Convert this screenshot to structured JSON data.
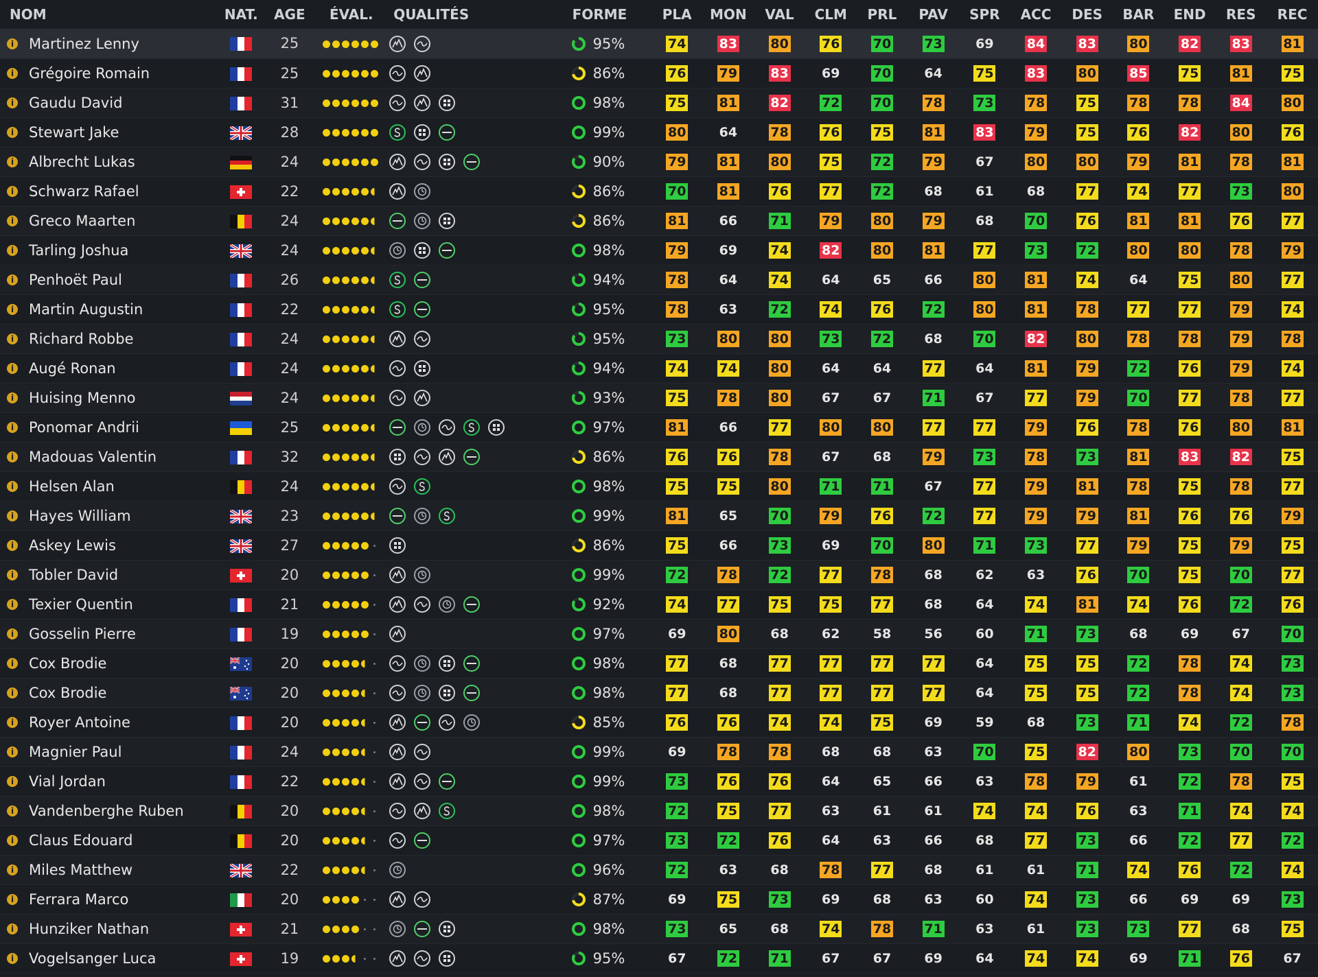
{
  "headers": {
    "nom": "NOM",
    "nat": "NAT.",
    "age": "AGE",
    "eval": "ÉVAL.",
    "qualites": "QUALITÉS",
    "forme": "FORME",
    "stats": [
      "PLA",
      "MON",
      "VAL",
      "CLM",
      "PRL",
      "PAV",
      "SPR",
      "ACC",
      "DES",
      "BAR",
      "END",
      "RES",
      "REC"
    ]
  },
  "colors": {
    "red": "#e8334a",
    "orange": "#f5a623",
    "yellow": "#f4dc1c",
    "green": "#2ecc40",
    "forme_green": "#2ecc40",
    "forme_yellow": "#f4dc1c",
    "stars": "#f2cf10"
  },
  "players": [
    {
      "name": "Martinez Lenny",
      "nat": "fr",
      "age": "25",
      "stars": 6,
      "quals": [
        "climber",
        "hill"
      ],
      "forme": "95%",
      "stats": [
        74,
        83,
        80,
        76,
        70,
        73,
        69,
        84,
        83,
        80,
        82,
        83,
        81
      ],
      "selected": true
    },
    {
      "name": "Grégoire Romain",
      "nat": "fr",
      "age": "25",
      "stars": 6,
      "quals": [
        "hill",
        "climber"
      ],
      "forme": "86%",
      "stats": [
        76,
        79,
        83,
        69,
        70,
        64,
        75,
        83,
        80,
        85,
        75,
        81,
        75
      ]
    },
    {
      "name": "Gaudu David",
      "nat": "fr",
      "age": "31",
      "stars": 6,
      "quals": [
        "hill",
        "climber",
        "cobbles"
      ],
      "forme": "98%",
      "stats": [
        75,
        81,
        82,
        72,
        70,
        78,
        73,
        78,
        75,
        78,
        78,
        84,
        80
      ]
    },
    {
      "name": "Stewart Jake",
      "nat": "gb",
      "age": "28",
      "stars": 6,
      "quals": [
        "sprinter",
        "cobbles",
        "flat"
      ],
      "forme": "99%",
      "stats": [
        80,
        64,
        78,
        76,
        75,
        81,
        83,
        79,
        75,
        76,
        82,
        80,
        76
      ]
    },
    {
      "name": "Albrecht Lukas",
      "nat": "de",
      "age": "24",
      "stars": 6,
      "quals": [
        "climber",
        "hill",
        "cobbles",
        "flat"
      ],
      "forme": "90%",
      "stats": [
        79,
        81,
        80,
        75,
        72,
        79,
        67,
        80,
        80,
        79,
        81,
        78,
        81
      ]
    },
    {
      "name": "Schwarz Rafael",
      "nat": "ch",
      "age": "22",
      "stars": 5.5,
      "quals": [
        "climber",
        "itt"
      ],
      "forme": "86%",
      "stats": [
        70,
        81,
        76,
        77,
        72,
        68,
        61,
        68,
        77,
        74,
        77,
        73,
        80
      ]
    },
    {
      "name": "Greco Maarten",
      "nat": "be",
      "age": "24",
      "stars": 5.5,
      "quals": [
        "flat",
        "itt",
        "cobbles"
      ],
      "forme": "86%",
      "stats": [
        81,
        66,
        71,
        79,
        80,
        79,
        68,
        70,
        76,
        81,
        81,
        76,
        77
      ]
    },
    {
      "name": "Tarling Joshua",
      "nat": "gb",
      "age": "24",
      "stars": 5.5,
      "quals": [
        "itt",
        "cobbles",
        "flat"
      ],
      "forme": "98%",
      "stats": [
        79,
        69,
        74,
        82,
        80,
        81,
        77,
        73,
        72,
        80,
        80,
        78,
        79
      ]
    },
    {
      "name": "Penhoët Paul",
      "nat": "fr",
      "age": "26",
      "stars": 5.5,
      "quals": [
        "sprinter",
        "flat"
      ],
      "forme": "94%",
      "stats": [
        78,
        64,
        74,
        64,
        65,
        66,
        80,
        81,
        74,
        64,
        75,
        80,
        77
      ]
    },
    {
      "name": "Martin Augustin",
      "nat": "fr",
      "age": "22",
      "stars": 5.5,
      "quals": [
        "sprinter",
        "flat"
      ],
      "forme": "95%",
      "stats": [
        78,
        63,
        72,
        74,
        76,
        72,
        80,
        81,
        78,
        77,
        77,
        79,
        74
      ]
    },
    {
      "name": "Richard Robbe",
      "nat": "fr",
      "age": "24",
      "stars": 5.5,
      "quals": [
        "climber",
        "hill"
      ],
      "forme": "95%",
      "stats": [
        73,
        80,
        80,
        73,
        72,
        68,
        70,
        82,
        80,
        78,
        78,
        79,
        78
      ]
    },
    {
      "name": "Augé Ronan",
      "nat": "fr",
      "age": "24",
      "stars": 5.5,
      "quals": [
        "hill",
        "cobbles"
      ],
      "forme": "94%",
      "stats": [
        74,
        74,
        80,
        64,
        64,
        77,
        64,
        81,
        79,
        72,
        76,
        79,
        74
      ]
    },
    {
      "name": "Huising Menno",
      "nat": "nl",
      "age": "24",
      "stars": 5.5,
      "quals": [
        "hill",
        "climber"
      ],
      "forme": "93%",
      "stats": [
        75,
        78,
        80,
        67,
        67,
        71,
        67,
        77,
        79,
        70,
        77,
        78,
        77
      ]
    },
    {
      "name": "Ponomar Andrii",
      "nat": "ua",
      "age": "25",
      "stars": 5.5,
      "quals": [
        "flat",
        "itt",
        "hill",
        "sprinter",
        "cobbles"
      ],
      "forme": "97%",
      "stats": [
        81,
        66,
        77,
        80,
        80,
        77,
        77,
        79,
        76,
        78,
        76,
        80,
        81
      ]
    },
    {
      "name": "Madouas Valentin",
      "nat": "fr",
      "age": "32",
      "stars": 5.5,
      "quals": [
        "cobbles",
        "hill",
        "climber",
        "flat"
      ],
      "forme": "86%",
      "stats": [
        76,
        76,
        78,
        67,
        68,
        79,
        73,
        78,
        73,
        81,
        83,
        82,
        75
      ]
    },
    {
      "name": "Helsen Alan",
      "nat": "be",
      "age": "24",
      "stars": 5.5,
      "quals": [
        "hill",
        "sprinter"
      ],
      "forme": "98%",
      "stats": [
        75,
        75,
        80,
        71,
        71,
        67,
        77,
        79,
        81,
        78,
        75,
        78,
        77
      ]
    },
    {
      "name": "Hayes William",
      "nat": "gb",
      "age": "23",
      "stars": 5.5,
      "quals": [
        "flat",
        "itt",
        "sprinter"
      ],
      "forme": "99%",
      "stats": [
        81,
        65,
        70,
        79,
        76,
        72,
        77,
        79,
        79,
        81,
        76,
        76,
        79
      ]
    },
    {
      "name": "Askey Lewis",
      "nat": "gb",
      "age": "27",
      "stars": 5,
      "quals": [
        "cobbles"
      ],
      "forme": "86%",
      "stats": [
        75,
        66,
        73,
        69,
        70,
        80,
        71,
        73,
        77,
        79,
        75,
        79,
        75
      ]
    },
    {
      "name": "Tobler David",
      "nat": "ch",
      "age": "20",
      "stars": 5,
      "quals": [
        "climber",
        "itt"
      ],
      "forme": "99%",
      "stats": [
        72,
        78,
        72,
        77,
        78,
        68,
        62,
        63,
        76,
        70,
        75,
        70,
        77
      ]
    },
    {
      "name": "Texier Quentin",
      "nat": "fr",
      "age": "21",
      "stars": 5,
      "quals": [
        "climber",
        "hill",
        "itt",
        "flat"
      ],
      "forme": "92%",
      "stats": [
        74,
        77,
        75,
        75,
        77,
        68,
        64,
        74,
        81,
        74,
        76,
        72,
        76
      ]
    },
    {
      "name": "Gosselin Pierre",
      "nat": "fr",
      "age": "19",
      "stars": 5,
      "quals": [
        "climber"
      ],
      "forme": "97%",
      "stats": [
        69,
        80,
        68,
        62,
        58,
        56,
        60,
        71,
        73,
        68,
        69,
        67,
        70
      ]
    },
    {
      "name": "Cox Brodie",
      "nat": "au",
      "age": "20",
      "stars": 4.5,
      "quals": [
        "hill",
        "itt",
        "cobbles",
        "flat"
      ],
      "forme": "98%",
      "stats": [
        77,
        68,
        77,
        77,
        77,
        77,
        64,
        75,
        75,
        72,
        78,
        74,
        73
      ]
    },
    {
      "name": "Cox Brodie",
      "nat": "au",
      "age": "20",
      "stars": 4.5,
      "quals": [
        "hill",
        "itt",
        "cobbles",
        "flat"
      ],
      "forme": "98%",
      "stats": [
        77,
        68,
        77,
        77,
        77,
        77,
        64,
        75,
        75,
        72,
        78,
        74,
        73
      ]
    },
    {
      "name": "Royer Antoine",
      "nat": "fr",
      "age": "20",
      "stars": 4.5,
      "quals": [
        "climber",
        "flat",
        "hill",
        "itt"
      ],
      "forme": "85%",
      "stats": [
        76,
        76,
        74,
        74,
        75,
        69,
        59,
        68,
        73,
        71,
        74,
        72,
        78
      ]
    },
    {
      "name": "Magnier Paul",
      "nat": "fr",
      "age": "24",
      "stars": 4.5,
      "quals": [
        "climber",
        "hill"
      ],
      "forme": "99%",
      "stats": [
        69,
        78,
        78,
        68,
        68,
        63,
        70,
        75,
        82,
        80,
        73,
        70,
        70
      ]
    },
    {
      "name": "Vial Jordan",
      "nat": "fr",
      "age": "22",
      "stars": 4.5,
      "quals": [
        "climber",
        "hill",
        "flat"
      ],
      "forme": "99%",
      "stats": [
        73,
        76,
        76,
        64,
        65,
        66,
        63,
        78,
        79,
        61,
        72,
        78,
        75
      ]
    },
    {
      "name": "Vandenberghe Ruben",
      "nat": "be",
      "age": "20",
      "stars": 4.5,
      "quals": [
        "hill",
        "climber",
        "sprinter"
      ],
      "forme": "98%",
      "stats": [
        72,
        75,
        77,
        63,
        61,
        61,
        74,
        74,
        76,
        63,
        71,
        74,
        74
      ]
    },
    {
      "name": "Claus Edouard",
      "nat": "be",
      "age": "20",
      "stars": 4.5,
      "quals": [
        "hill",
        "flat"
      ],
      "forme": "97%",
      "stats": [
        73,
        72,
        76,
        64,
        63,
        66,
        68,
        77,
        73,
        66,
        72,
        77,
        72
      ]
    },
    {
      "name": "Miles Matthew",
      "nat": "gb",
      "age": "22",
      "stars": 4.5,
      "quals": [
        "itt"
      ],
      "forme": "96%",
      "stats": [
        72,
        63,
        68,
        78,
        77,
        68,
        61,
        61,
        71,
        74,
        76,
        72,
        74
      ]
    },
    {
      "name": "Ferrara Marco",
      "nat": "it",
      "age": "20",
      "stars": 4,
      "quals": [
        "climber",
        "hill"
      ],
      "forme": "87%",
      "stats": [
        69,
        75,
        73,
        69,
        68,
        63,
        60,
        74,
        73,
        66,
        69,
        69,
        73
      ]
    },
    {
      "name": "Hunziker Nathan",
      "nat": "ch",
      "age": "21",
      "stars": 4,
      "quals": [
        "itt",
        "flat",
        "cobbles"
      ],
      "forme": "98%",
      "stats": [
        73,
        65,
        68,
        74,
        78,
        71,
        63,
        61,
        73,
        73,
        77,
        68,
        75
      ]
    },
    {
      "name": "Vogelsanger Luca",
      "nat": "ch",
      "age": "19",
      "stars": 3.5,
      "quals": [
        "climber",
        "hill",
        "cobbles"
      ],
      "forme": "95%",
      "stats": [
        67,
        72,
        71,
        67,
        67,
        69,
        64,
        74,
        74,
        69,
        71,
        76,
        67
      ]
    }
  ]
}
